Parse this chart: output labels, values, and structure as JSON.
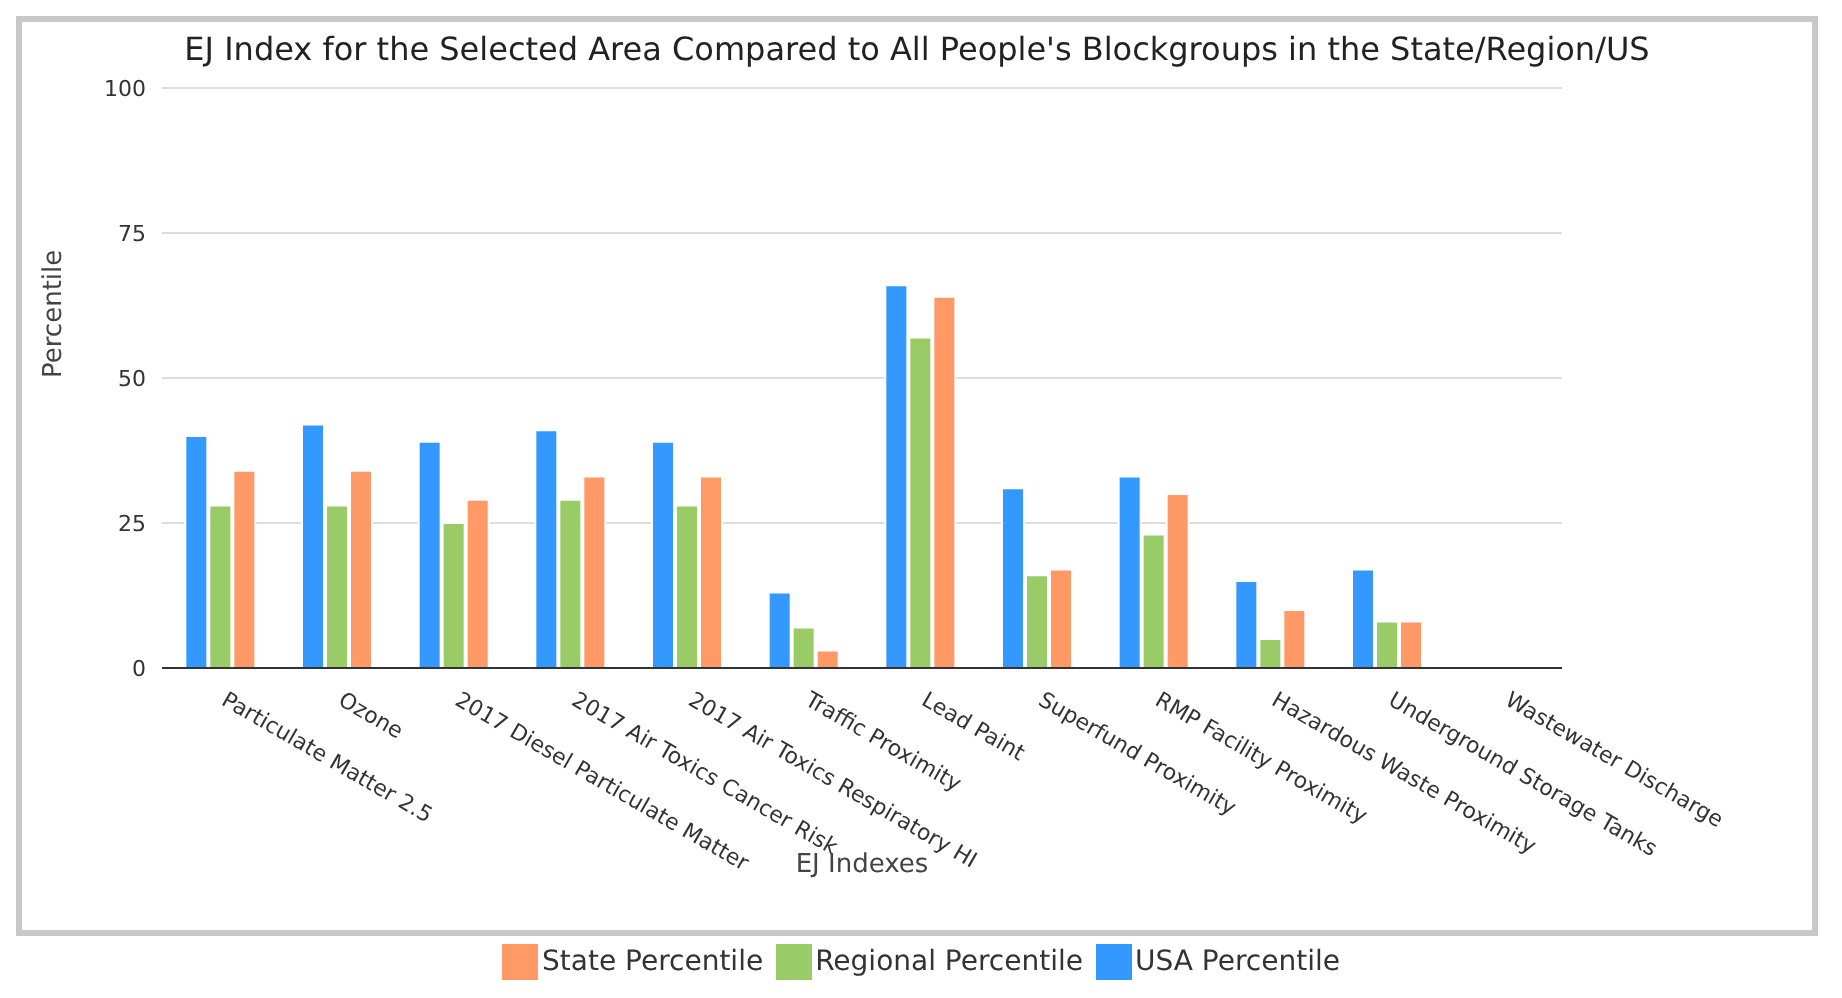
{
  "chart_data": {
    "type": "bar",
    "title": "EJ Index for the Selected Area Compared to All People's Blockgroups in the State/Region/US",
    "xlabel": "EJ Indexes",
    "ylabel": "Percentile",
    "categories": [
      "Particulate Matter 2.5",
      "Ozone",
      "2017 Diesel Particulate Matter",
      "2017 Air Toxics Cancer Risk",
      "2017 Air Toxics Respiratory HI",
      "Traffic Proximity",
      "Lead Paint",
      "Superfund Proximity",
      "RMP Facility Proximity",
      "Hazardous Waste Proximity",
      "Underground Storage Tanks",
      "Wastewater Discharge"
    ],
    "series": [
      {
        "name": "State Percentile",
        "color": "#ff9966",
        "values": [
          34,
          34,
          29,
          33,
          33,
          3,
          64,
          17,
          30,
          10,
          8,
          null
        ]
      },
      {
        "name": "Regional Percentile",
        "color": "#99cc66",
        "values": [
          28,
          28,
          25,
          29,
          28,
          7,
          57,
          16,
          23,
          5,
          8,
          null
        ]
      },
      {
        "name": "USA Percentile",
        "color": "#3399ff",
        "values": [
          40,
          42,
          39,
          41,
          39,
          13,
          66,
          31,
          33,
          15,
          17,
          null
        ]
      }
    ],
    "ylim": [
      0,
      100
    ],
    "yticks": [
      0,
      25,
      50,
      75,
      100
    ],
    "grid": "y",
    "legend": "bottom"
  }
}
